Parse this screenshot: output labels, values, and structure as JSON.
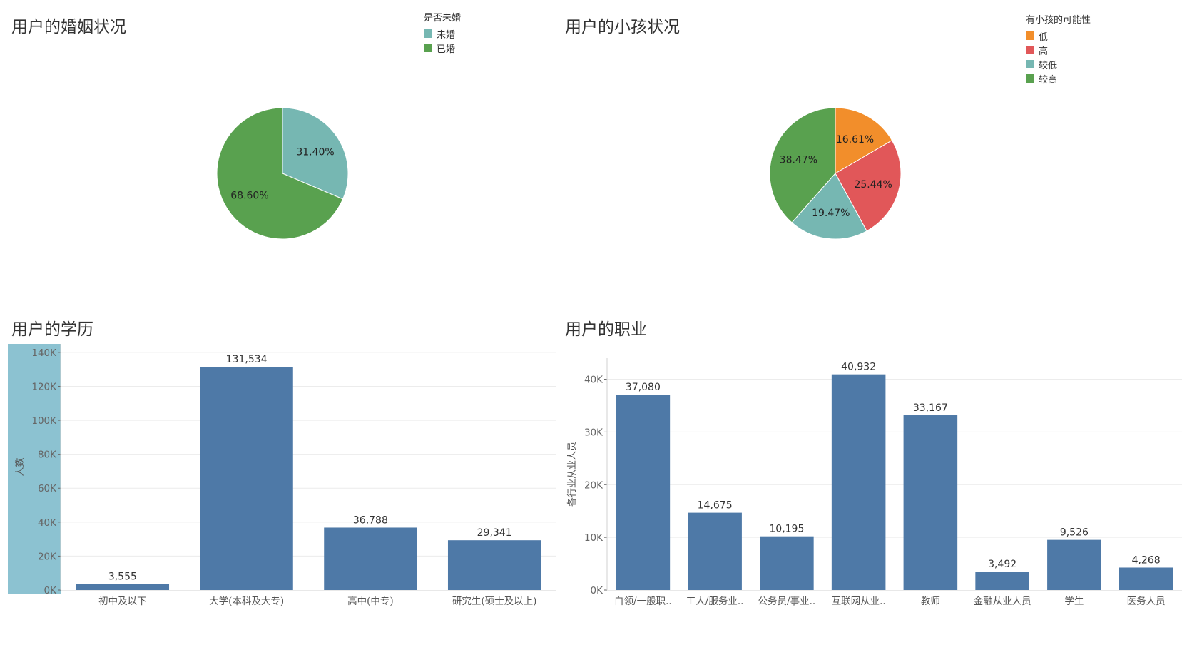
{
  "chart_data": [
    {
      "id": "marriage",
      "type": "pie",
      "title": "用户的婚姻状况",
      "legend_title": "是否未婚",
      "legend_position": "top-right",
      "labels": [
        "未婚",
        "已婚"
      ],
      "values": [
        31.4,
        68.6
      ],
      "value_labels": [
        "31.40%",
        "68.60%"
      ],
      "colors": [
        "#76b7b2",
        "#59a14f"
      ]
    },
    {
      "id": "children",
      "type": "pie",
      "title": "用户的小孩状况",
      "legend_title": "有小孩的可能性",
      "legend_position": "top-right",
      "legend_labels": [
        "低",
        "高",
        "较低",
        "较高"
      ],
      "legend_colors": [
        "#f28e2b",
        "#e15759",
        "#76b7b2",
        "#59a14f"
      ],
      "labels": [
        "低",
        "高",
        "较低",
        "较高"
      ],
      "values": [
        16.61,
        25.44,
        19.47,
        38.47
      ],
      "value_labels": [
        "16.61%",
        "25.44%",
        "19.47%",
        "38.47%"
      ],
      "colors": [
        "#f28e2b",
        "#e15759",
        "#76b7b2",
        "#59a14f"
      ]
    },
    {
      "id": "education",
      "type": "bar",
      "title": "用户的学历",
      "ylabel": "人数",
      "ylim": [
        0,
        145000
      ],
      "yticks": [
        0,
        20000,
        40000,
        60000,
        80000,
        100000,
        120000,
        140000
      ],
      "ytick_labels": [
        "0K",
        "20K",
        "40K",
        "60K",
        "80K",
        "100K",
        "120K",
        "140K"
      ],
      "categories": [
        "初中及以下",
        "大学(本科及大专)",
        "高中(中专)",
        "研究生(硕士及以上)"
      ],
      "values": [
        3555,
        131534,
        36788,
        29341
      ],
      "value_labels": [
        "3,555",
        "131,534",
        "36,788",
        "29,341"
      ],
      "bar_color": "#4e79a7",
      "axis_highlight_color": "#8cc2d1",
      "grid": true
    },
    {
      "id": "occupation",
      "type": "bar",
      "title": "用户的职业",
      "ylabel": "各行业从业人员",
      "ylim": [
        0,
        44000
      ],
      "yticks": [
        0,
        10000,
        20000,
        30000,
        40000
      ],
      "ytick_labels": [
        "0K",
        "10K",
        "20K",
        "30K",
        "40K"
      ],
      "categories": [
        "白领/一般职..",
        "工人/服务业..",
        "公务员/事业..",
        "互联网从业..",
        "教师",
        "金融从业人员",
        "学生",
        "医务人员"
      ],
      "values": [
        37080,
        14675,
        10195,
        40932,
        33167,
        3492,
        9526,
        4268
      ],
      "value_labels": [
        "37,080",
        "14,675",
        "10,195",
        "40,932",
        "33,167",
        "3,492",
        "9,526",
        "4,268"
      ],
      "bar_color": "#4e79a7",
      "grid": true
    }
  ]
}
